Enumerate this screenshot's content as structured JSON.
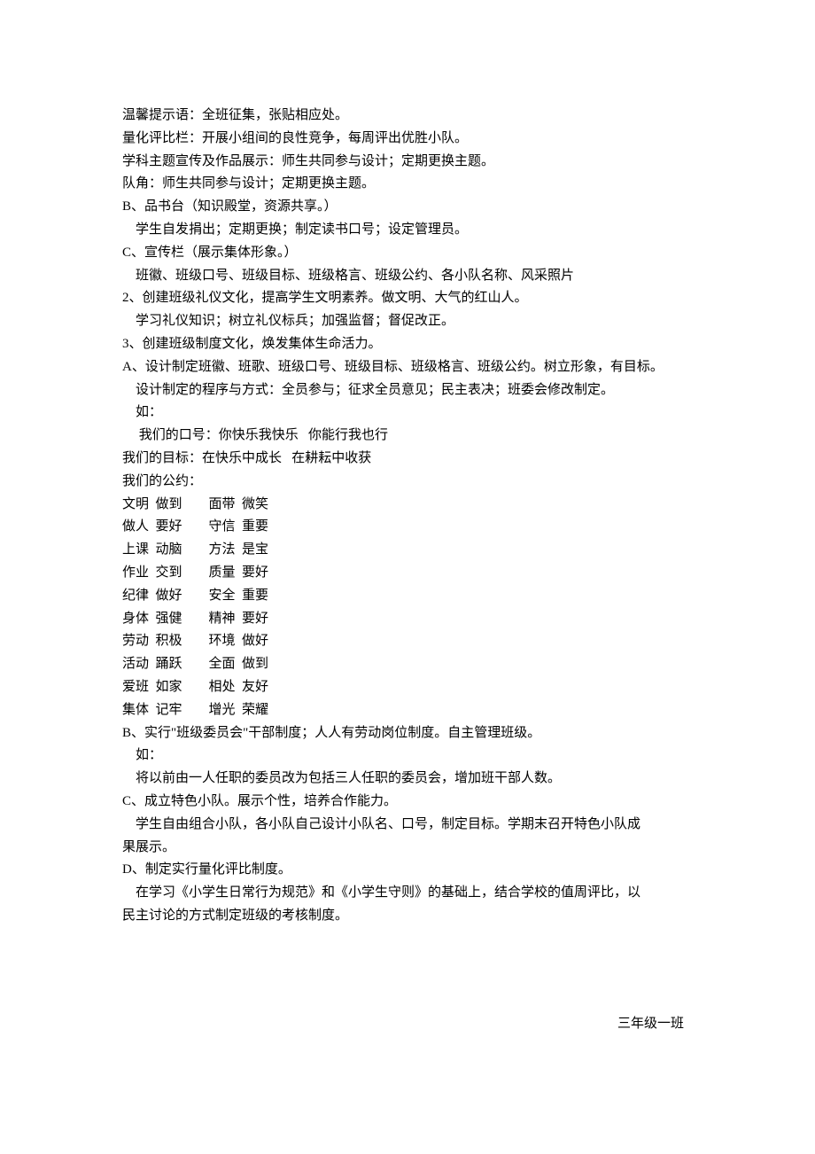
{
  "doc": {
    "lines": [
      "温馨提示语：全班征集，张贴相应处。",
      "量化评比栏：开展小组间的良性竞争，每周评出优胜小队。",
      "学科主题宣传及作品展示：师生共同参与设计；定期更换主题。",
      "队角：师生共同参与设计；定期更换主题。",
      "B、品书台（知识殿堂，资源共享。）",
      "    学生自发捐出；定期更换；制定读书口号；设定管理员。",
      "C、宣传栏（展示集体形象。）",
      "    班徽、班级口号、班级目标、班级格言、班级公约、各小队名称、风采照片",
      "2、创建班级礼仪文化，提高学生文明素养。做文明、大气的红山人。",
      "    学习礼仪知识；树立礼仪标兵；加强监督；督促改正。",
      "3、创建班级制度文化，焕发集体生命活力。",
      "A、设计制定班徽、班歌、班级口号、班级目标、班级格言、班级公约。树立形象，有目标。",
      "    设计制定的程序与方式：全员参与；征求全员意见；民主表决；班委会修改制定。",
      "    如：",
      "     我们的口号：你快乐我快乐   你能行我也行",
      "我们的目标：在快乐中成长   在耕耘中收获",
      "我们的公约：",
      "文明  做到        面带  微笑",
      "做人  要好        守信  重要",
      "上课  动脑        方法  是宝",
      "作业  交到        质量  要好",
      "纪律  做好        安全  重要",
      "身体  强健        精神  要好",
      "劳动  积极        环境  做好",
      "活动  踊跃        全面  做到",
      "爱班  如家        相处  友好",
      "集体  记牢        增光  荣耀",
      "B、实行\"班级委员会\"干部制度；人人有劳动岗位制度。自主管理班级。",
      "    如：",
      "    将以前由一人任职的委员改为包括三人任职的委员会，增加班干部人数。",
      "C、成立特色小队。展示个性，培养合作能力。",
      "    学生自由组合小队，各小队自己设计小队名、口号，制定目标。学期末召开特色小队成",
      "果展示。",
      "D、制定实行量化评比制度。",
      "    在学习《小学生日常行为规范》和《小学生守则》的基础上，结合学校的值周评比，以",
      "民主讨论的方式制定班级的考核制度。"
    ],
    "signature": "三年级一班"
  }
}
